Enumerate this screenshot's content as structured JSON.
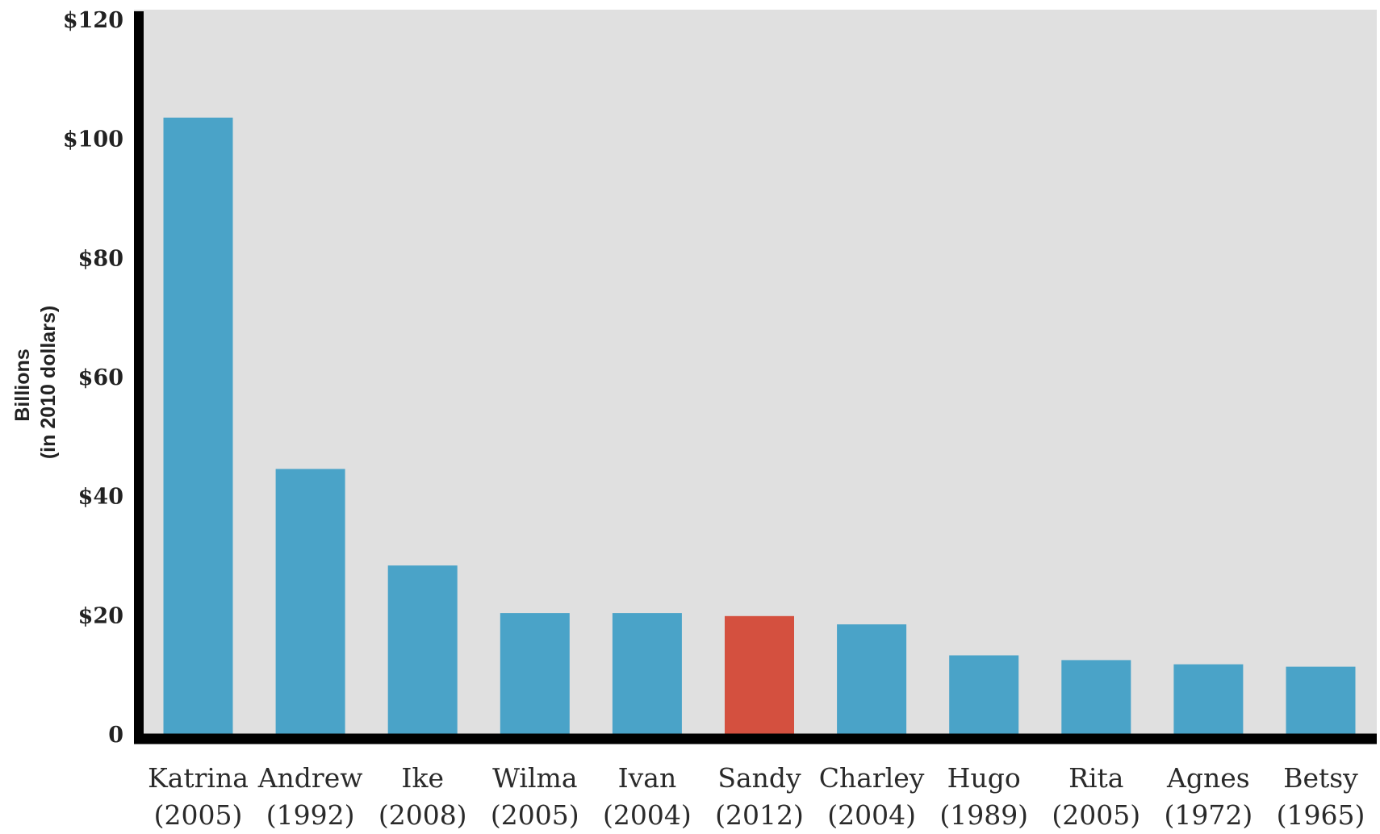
{
  "chart_data": {
    "type": "bar",
    "title": "",
    "xlabel": "",
    "ylabel": [
      "Billions",
      "(in 2010 dollars)"
    ],
    "ylim": [
      0,
      120
    ],
    "yticks": [
      {
        "value": 0,
        "label": "0"
      },
      {
        "value": 20,
        "label": "$20"
      },
      {
        "value": 40,
        "label": "$40"
      },
      {
        "value": 60,
        "label": "$60"
      },
      {
        "value": 80,
        "label": "$80"
      },
      {
        "value": 100,
        "label": "$100"
      },
      {
        "value": 120,
        "label": "$120"
      }
    ],
    "grid": false,
    "background_color": "#e0e0e0",
    "axis_color": "#000000",
    "bar_color": "#4aa3c8",
    "highlight_color": "#d4503f",
    "categories": [
      {
        "name": "Katrina",
        "year": "(2005)"
      },
      {
        "name": "Andrew",
        "year": "(1992)"
      },
      {
        "name": "Ike",
        "year": "(2008)"
      },
      {
        "name": "Wilma",
        "year": "(2005)"
      },
      {
        "name": "Ivan",
        "year": "(2004)"
      },
      {
        "name": "Sandy",
        "year": "(2012)"
      },
      {
        "name": "Charley",
        "year": "(2004)"
      },
      {
        "name": "Hugo",
        "year": "(1989)"
      },
      {
        "name": "Rita",
        "year": "(2005)"
      },
      {
        "name": "Agnes",
        "year": "(1972)"
      },
      {
        "name": "Betsy",
        "year": "(1965)"
      }
    ],
    "values": [
      103.5,
      44.5,
      28.3,
      20.3,
      20.3,
      19.8,
      18.4,
      13.2,
      12.4,
      11.7,
      11.3
    ],
    "highlighted": [
      "Sandy"
    ]
  }
}
